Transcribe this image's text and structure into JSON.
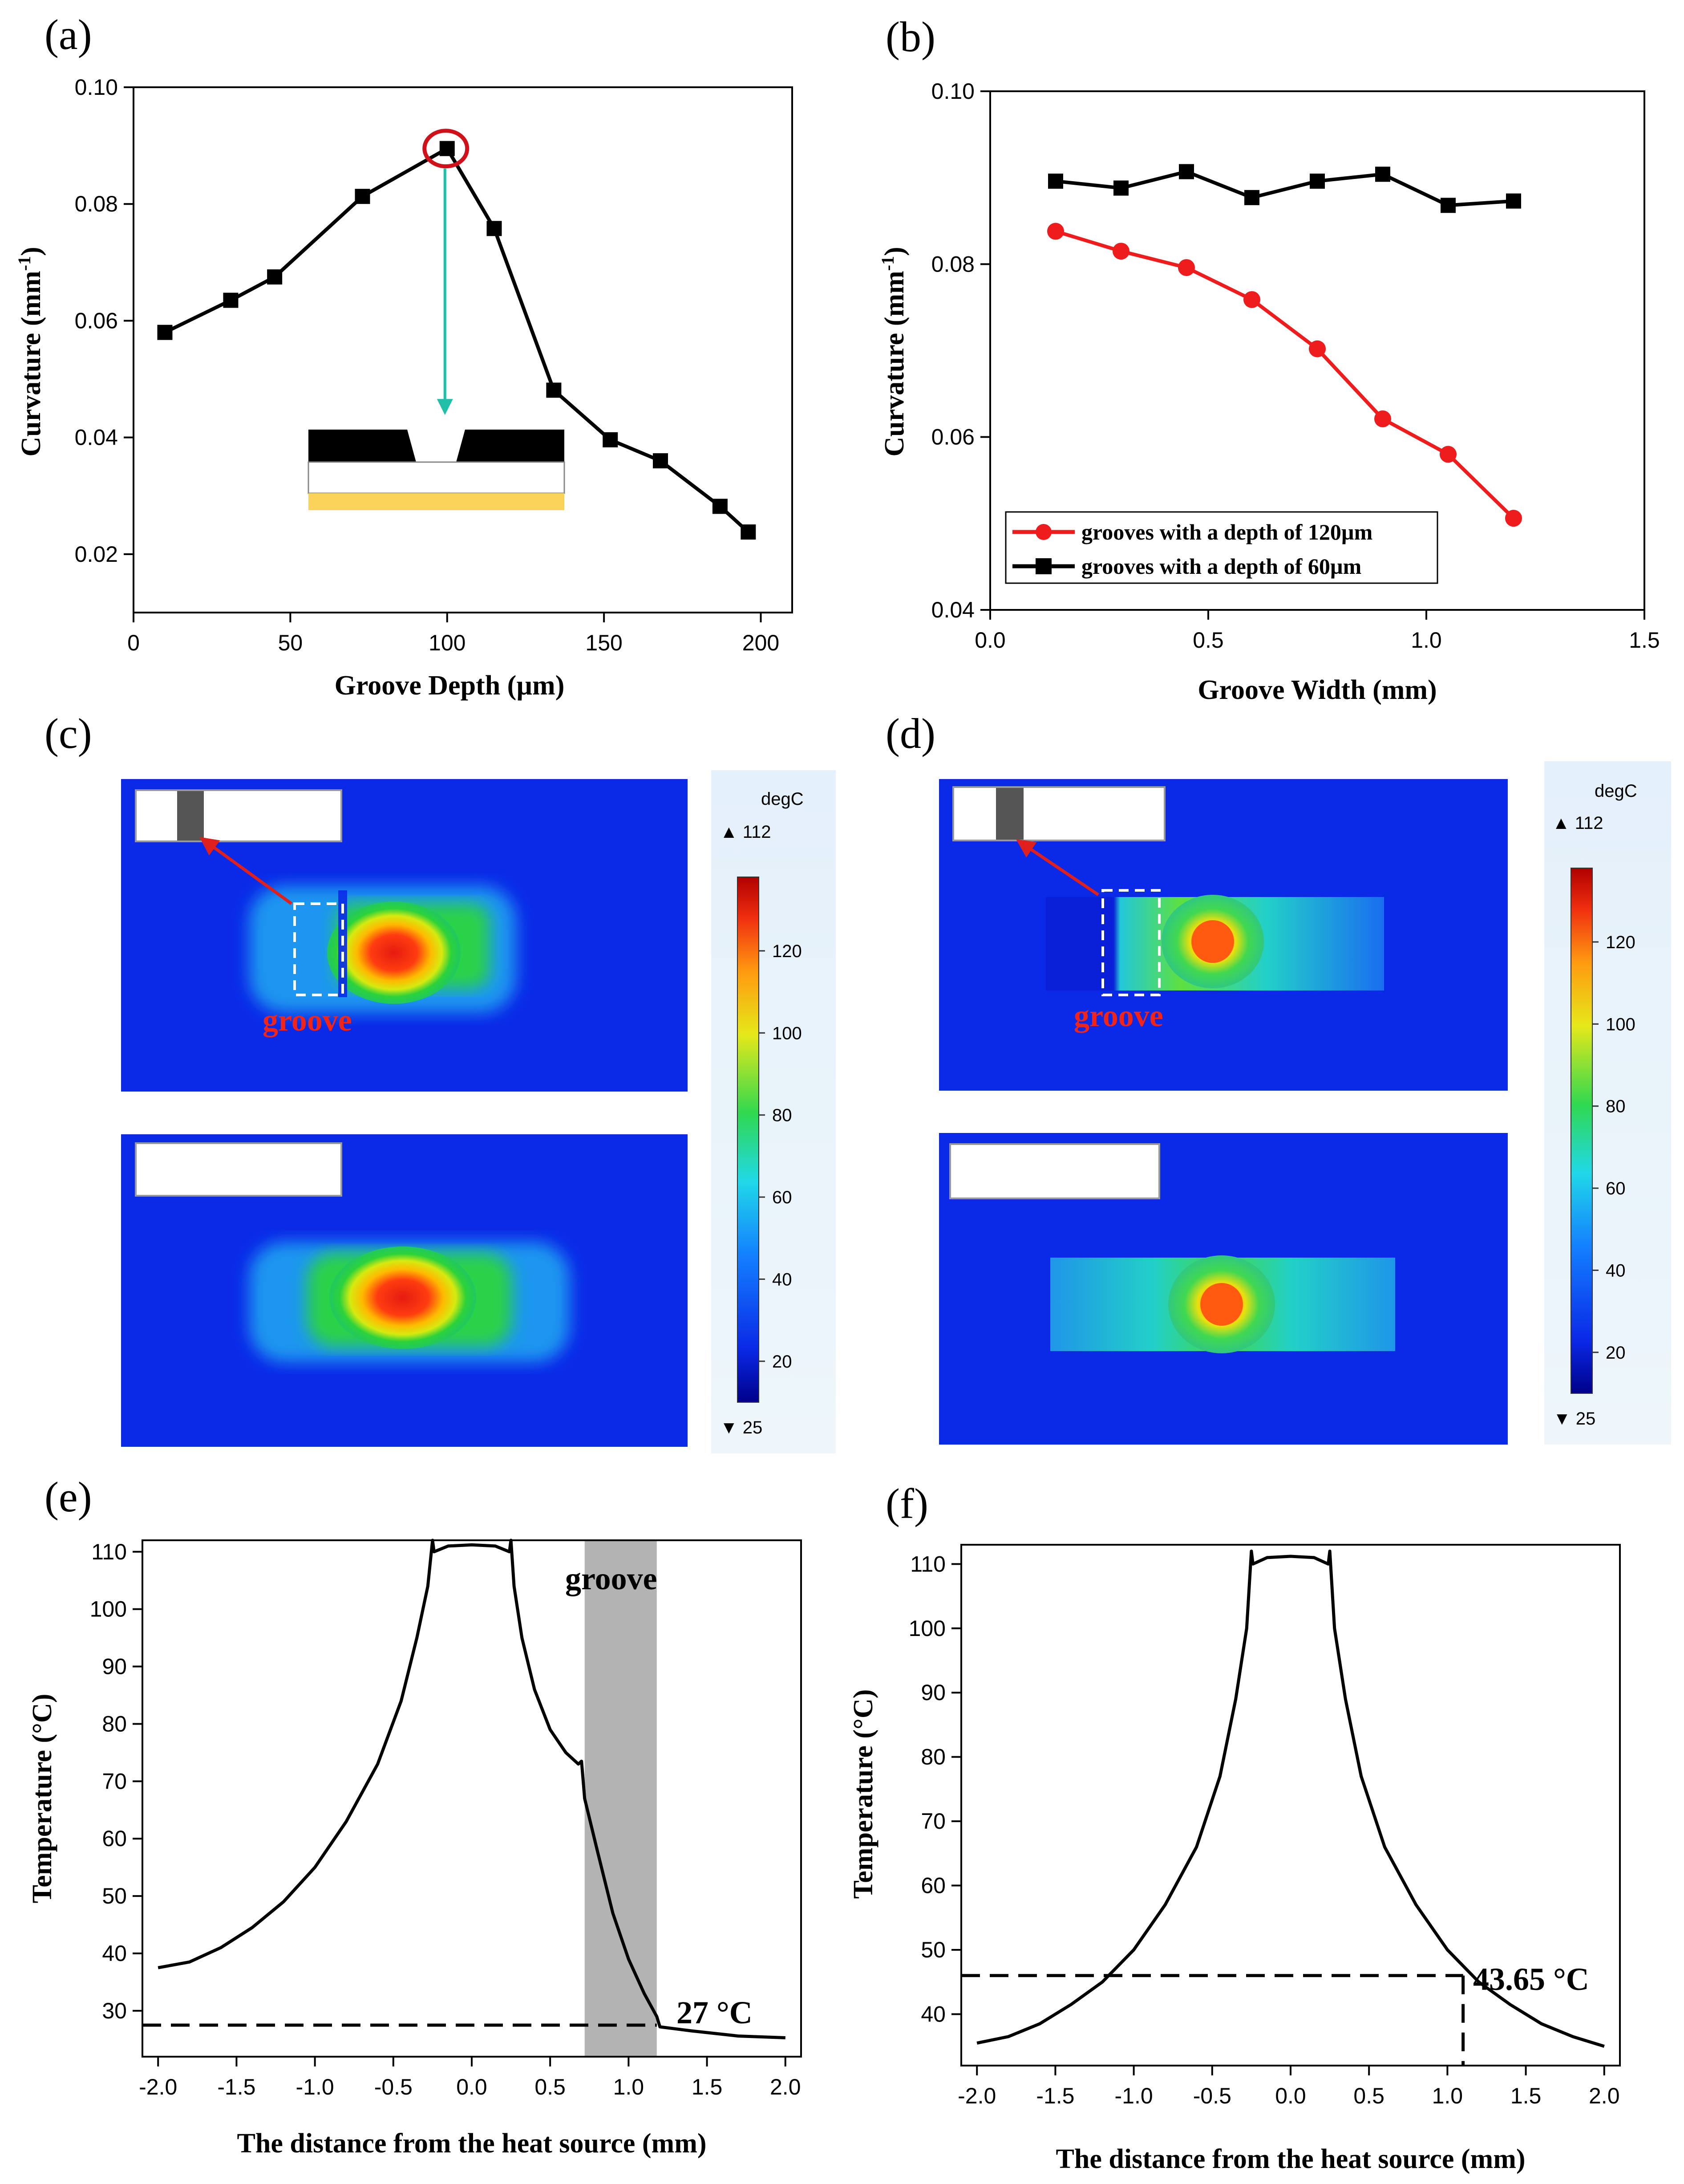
{
  "panels": {
    "a": "(a)",
    "b": "(b)",
    "c": "(c)",
    "d": "(d)",
    "e": "(e)",
    "f": "(f)"
  },
  "chart_data": [
    {
      "id": "a",
      "type": "line",
      "xlabel": "Groove Depth (µm)",
      "ylabel_main": "Curvature (mm",
      "ylabel_sup": "-1",
      "ylabel_end": ")",
      "xlim": [
        0,
        210
      ],
      "ylim": [
        0.01,
        0.1
      ],
      "xticks": [
        0,
        50,
        100,
        150,
        200
      ],
      "yticks": [
        0.02,
        0.04,
        0.06,
        0.08,
        0.1
      ],
      "ytick_labels": [
        "0.02",
        "0.04",
        "0.06",
        "0.08",
        "0.10"
      ],
      "series": [
        {
          "color": "#000000",
          "marker": "square",
          "x": [
            10,
            31,
            45,
            73,
            100,
            115,
            134,
            152,
            168,
            187,
            196
          ],
          "y": [
            0.058,
            0.0635,
            0.0675,
            0.0813,
            0.0895,
            0.0758,
            0.0481,
            0.0396,
            0.036,
            0.0282,
            0.0238
          ]
        }
      ],
      "highlight_point": {
        "x": 100,
        "y": 0.0895,
        "color": "#d0111c"
      },
      "arrow_color": "#1fbfa8"
    },
    {
      "id": "b",
      "type": "line",
      "xlabel": "Groove Width (mm)",
      "ylabel_main": "Curvature (mm",
      "ylabel_sup": "-1",
      "ylabel_end": ")",
      "xlim": [
        0,
        1.5
      ],
      "ylim": [
        0.04,
        0.1
      ],
      "xticks": [
        0,
        0.5,
        1.0,
        1.5
      ],
      "xtick_labels": [
        "0.0",
        "0.5",
        "1.0",
        "1.5"
      ],
      "yticks": [
        0.04,
        0.06,
        0.08,
        0.1
      ],
      "ytick_labels": [
        "0.04",
        "0.06",
        "0.08",
        "0.10"
      ],
      "legend_position": "bottom-left",
      "series": [
        {
          "name": "grooves with a depth of 120µm",
          "color": "#ee1c1c",
          "marker": "circle",
          "x": [
            0.15,
            0.3,
            0.45,
            0.6,
            0.75,
            0.9,
            1.05,
            1.2
          ],
          "y": [
            0.0838,
            0.0815,
            0.0796,
            0.0759,
            0.0702,
            0.0621,
            0.058,
            0.0506
          ]
        },
        {
          "name": "grooves with a depth of 60µm",
          "color": "#000000",
          "marker": "square",
          "x": [
            0.15,
            0.3,
            0.45,
            0.6,
            0.75,
            0.9,
            1.05,
            1.2
          ],
          "y": [
            0.0896,
            0.0888,
            0.0907,
            0.0877,
            0.0896,
            0.0904,
            0.0868,
            0.0873
          ]
        }
      ]
    },
    {
      "id": "c",
      "type": "heatmap",
      "colorbar_unit": "degC",
      "colorbar_max_label": "112",
      "colorbar_min_label": "25",
      "colorbar_ticks": [
        20,
        40,
        60,
        80,
        100,
        120
      ],
      "colorbar_range": [
        10,
        138
      ],
      "groove_label": "groove"
    },
    {
      "id": "d",
      "type": "heatmap",
      "colorbar_unit": "degC",
      "colorbar_max_label": "112",
      "colorbar_min_label": "25",
      "colorbar_ticks": [
        20,
        40,
        60,
        80,
        100,
        120
      ],
      "colorbar_range": [
        10,
        138
      ],
      "groove_label": "groove"
    },
    {
      "id": "e",
      "type": "line",
      "xlabel": "The distance from the heat source (mm)",
      "ylabel": "Temperature (°C)",
      "xlim": [
        -2.1,
        2.1
      ],
      "ylim": [
        22,
        112
      ],
      "xticks": [
        -2.0,
        -1.5,
        -1.0,
        -0.5,
        0.0,
        0.5,
        1.0,
        1.5,
        2.0
      ],
      "xtick_labels": [
        "-2.0",
        "-1.5",
        "-1.0",
        "-0.5",
        "0.0",
        "0.5",
        "1.0",
        "1.5",
        "2.0"
      ],
      "yticks": [
        30,
        40,
        50,
        60,
        70,
        80,
        90,
        100,
        110
      ],
      "groove_region": [
        0.72,
        1.18
      ],
      "groove_label": "groove",
      "annotation": "27 °C",
      "annotation_x": 1.18,
      "annotation_y": 27.5,
      "curve_points": [
        [
          -2.0,
          37.5
        ],
        [
          -1.8,
          38.5
        ],
        [
          -1.6,
          41
        ],
        [
          -1.4,
          44.5
        ],
        [
          -1.2,
          49
        ],
        [
          -1.0,
          55
        ],
        [
          -0.8,
          63
        ],
        [
          -0.6,
          73
        ],
        [
          -0.45,
          84
        ],
        [
          -0.35,
          95
        ],
        [
          -0.28,
          104
        ],
        [
          -0.25,
          112
        ],
        [
          -0.24,
          110
        ],
        [
          -0.15,
          111
        ],
        [
          0.0,
          111.2
        ],
        [
          0.15,
          111
        ],
        [
          0.24,
          110
        ],
        [
          0.25,
          112
        ],
        [
          0.27,
          104
        ],
        [
          0.32,
          95
        ],
        [
          0.4,
          86
        ],
        [
          0.5,
          79
        ],
        [
          0.6,
          75
        ],
        [
          0.68,
          73
        ],
        [
          0.7,
          73.5
        ],
        [
          0.72,
          67
        ],
        [
          0.8,
          58
        ],
        [
          0.9,
          47
        ],
        [
          1.0,
          39
        ],
        [
          1.1,
          33
        ],
        [
          1.18,
          29
        ],
        [
          1.2,
          27.2
        ],
        [
          1.4,
          26.5
        ],
        [
          1.7,
          25.6
        ],
        [
          2.0,
          25.3
        ]
      ]
    },
    {
      "id": "f",
      "type": "line",
      "xlabel": "The distance from the heat source (mm)",
      "ylabel": "Temperature (°C)",
      "xlim": [
        -2.1,
        2.1
      ],
      "ylim": [
        32,
        113
      ],
      "xticks": [
        -2.0,
        -1.5,
        -1.0,
        -0.5,
        0.0,
        0.5,
        1.0,
        1.5,
        2.0
      ],
      "xtick_labels": [
        "-2.0",
        "-1.5",
        "-1.0",
        "-0.5",
        "0.0",
        "0.5",
        "1.0",
        "1.5",
        "2.0"
      ],
      "yticks": [
        40,
        50,
        60,
        70,
        80,
        90,
        100,
        110
      ],
      "annotation": "43.65 °C",
      "annotation_x": 1.1,
      "annotation_y": 46,
      "curve_points": [
        [
          -2.0,
          35.5
        ],
        [
          -1.8,
          36.5
        ],
        [
          -1.6,
          38.5
        ],
        [
          -1.4,
          41.5
        ],
        [
          -1.2,
          45
        ],
        [
          -1.0,
          50
        ],
        [
          -0.8,
          57
        ],
        [
          -0.6,
          66
        ],
        [
          -0.45,
          77
        ],
        [
          -0.35,
          89
        ],
        [
          -0.28,
          100
        ],
        [
          -0.25,
          112
        ],
        [
          -0.24,
          110
        ],
        [
          -0.15,
          111
        ],
        [
          0.0,
          111.2
        ],
        [
          0.15,
          111
        ],
        [
          0.24,
          110
        ],
        [
          0.25,
          112
        ],
        [
          0.28,
          100
        ],
        [
          0.35,
          89
        ],
        [
          0.45,
          77
        ],
        [
          0.6,
          66
        ],
        [
          0.8,
          57
        ],
        [
          1.0,
          50
        ],
        [
          1.2,
          45
        ],
        [
          1.4,
          41.5
        ],
        [
          1.6,
          38.5
        ],
        [
          1.8,
          36.5
        ],
        [
          2.0,
          35
        ]
      ]
    }
  ]
}
